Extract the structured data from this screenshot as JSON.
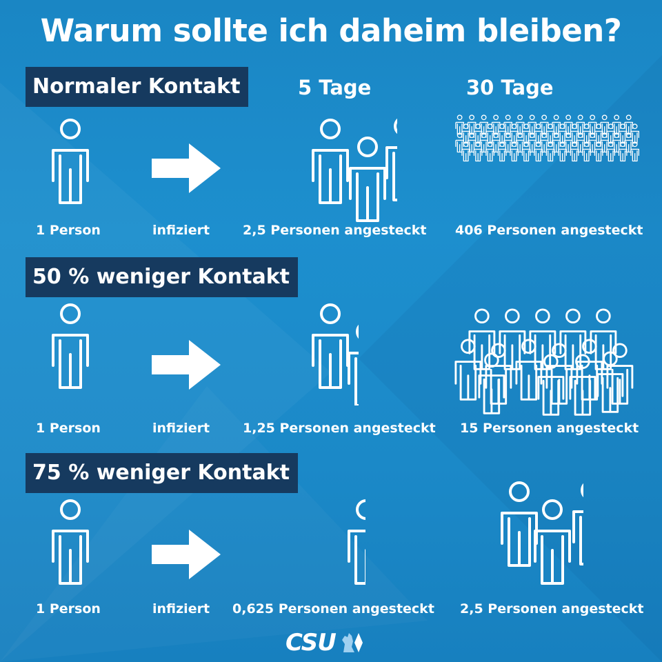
{
  "title": "Warum sollte ich daheim bleiben?",
  "columns": {
    "day5": "5 Tage",
    "day30": "30 Tage"
  },
  "rows": [
    {
      "label": "Normaler Kontakt",
      "source": "1 Person",
      "verb": "infiziert",
      "day5": "2,5 Personen angesteckt",
      "day30": "406 Personen angesteckt"
    },
    {
      "label": "50 % weniger Kontakt",
      "source": "1 Person",
      "verb": "infiziert",
      "day5": "1,25 Personen angesteckt",
      "day30": "15 Personen angesteckt"
    },
    {
      "label": "75 % weniger Kontakt",
      "source": "1 Person",
      "verb": "infiziert",
      "day5": "0,625 Personen angesteckt",
      "day30": "2,5 Personen angesteckt"
    }
  ],
  "logo": {
    "text": "CSU",
    "icon": "lion-icon"
  },
  "colors": {
    "background": "#1b89c8",
    "label_background": "#163a5f",
    "foreground": "#ffffff"
  }
}
